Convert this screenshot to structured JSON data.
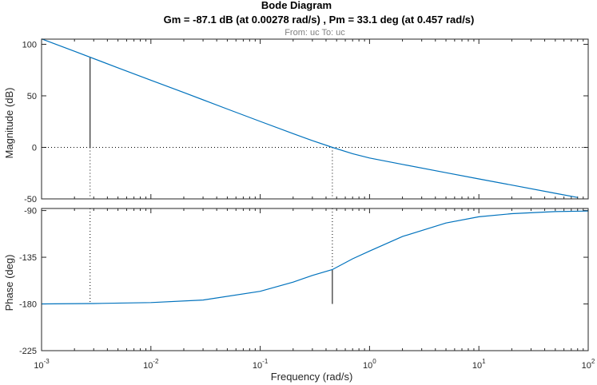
{
  "chart_data": {
    "type": "line",
    "title": "Bode Diagram",
    "title_line2": "Gm = -87.1 dB (at 0.00278 rad/s) ,  Pm = 33.1 deg (at 0.457 rad/s)",
    "subtitle": "From: uc  To: uc",
    "xlabel": "Frequency  (rad/s)",
    "x_scale": "log",
    "xlim": [
      0.001,
      100
    ],
    "x_ticks": [
      {
        "base": "10",
        "exp": "-3"
      },
      {
        "base": "10",
        "exp": "-2"
      },
      {
        "base": "10",
        "exp": "-1"
      },
      {
        "base": "10",
        "exp": "0"
      },
      {
        "base": "10",
        "exp": "1"
      },
      {
        "base": "10",
        "exp": "2"
      }
    ],
    "line_color": "#0072bd",
    "marker_color": "#000000",
    "grid": false,
    "gain_margin": {
      "value_db": -87.1,
      "frequency": 0.00278
    },
    "phase_margin": {
      "value_deg": 33.1,
      "frequency": 0.457
    },
    "magnitude": {
      "ylabel": "Magnitude (dB)",
      "ylim": [
        -50,
        105
      ],
      "yticks": [
        "100",
        "50",
        "0",
        "-50"
      ],
      "reference_line": 0,
      "series": [
        {
          "x": [
            0.001,
            0.002,
            0.005,
            0.01,
            0.02,
            0.05,
            0.1,
            0.2,
            0.3,
            0.457,
            0.7,
            1,
            2,
            5,
            10,
            20,
            50,
            80
          ],
          "values": [
            105.2,
            93.2,
            77.2,
            65.2,
            53.2,
            37.2,
            25.2,
            13.3,
            6.5,
            0.0,
            -6.1,
            -10.3,
            -16.5,
            -24.6,
            -30.6,
            -36.6,
            -44.6,
            -48.6
          ]
        }
      ]
    },
    "phase": {
      "ylabel": "Phase (deg)",
      "ylim": [
        -225,
        -88
      ],
      "yticks": [
        "-90",
        "-135",
        "-180",
        "-225"
      ],
      "series": [
        {
          "x": [
            0.001,
            0.003,
            0.01,
            0.03,
            0.1,
            0.2,
            0.3,
            0.457,
            0.7,
            1,
            2,
            5,
            10,
            20,
            50,
            100
          ],
          "values": [
            -180,
            -179.6,
            -178.7,
            -176.2,
            -167.8,
            -159,
            -152.5,
            -146.9,
            -136.5,
            -129,
            -115,
            -102,
            -96,
            -93,
            -91,
            -90.5
          ]
        }
      ]
    }
  }
}
